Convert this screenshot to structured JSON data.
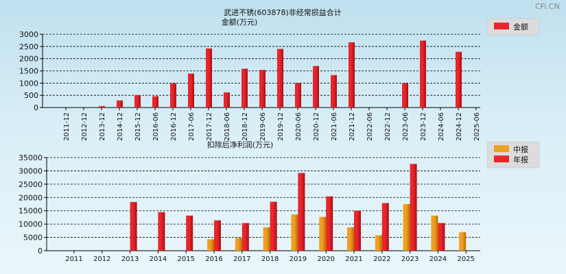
{
  "watermark": "CFi.CN",
  "colors": {
    "red": "#e8262b",
    "red_dark": "#a70f14",
    "orange": "#f0a020",
    "orange_dark": "#b86f00"
  },
  "chart_data": [
    {
      "type": "bar",
      "title": "武进不锈(603878)非经常损益合计",
      "ylabel": "金额(万元)",
      "ylim": [
        0,
        3000
      ],
      "yticks": [
        0,
        500,
        1000,
        1500,
        2000,
        2500,
        3000
      ],
      "categories": [
        "2011-12",
        "2012-12",
        "2013-12",
        "2014-12",
        "2015-12",
        "2016-06",
        "2016-12",
        "2017-06",
        "2017-12",
        "2018-06",
        "2018-12",
        "2019-06",
        "2019-12",
        "2020-06",
        "2020-12",
        "2021-06",
        "2021-12",
        "2022-06",
        "2022-12",
        "2023-06",
        "2023-12",
        "2024-06",
        "2024-12",
        "2025-06"
      ],
      "series": [
        {
          "name": "金额",
          "values": [
            0,
            0,
            60,
            290,
            510,
            460,
            990,
            1390,
            2420,
            620,
            1590,
            1540,
            2400,
            1000,
            1700,
            1330,
            2670,
            0,
            0,
            1000,
            2740,
            0,
            2280,
            0
          ]
        }
      ],
      "legend": "top-right",
      "grid": true
    },
    {
      "type": "bar",
      "title": "扣除后净利润(万元)",
      "ylim": [
        0,
        35000
      ],
      "yticks": [
        0,
        5000,
        10000,
        15000,
        20000,
        25000,
        30000,
        35000
      ],
      "categories": [
        "2011",
        "2012",
        "2013",
        "2014",
        "2015",
        "2016",
        "2017",
        "2018",
        "2019",
        "2020",
        "2021",
        "2022",
        "2023",
        "2024",
        "2025"
      ],
      "series": [
        {
          "name": "中报",
          "values": [
            0,
            0,
            0,
            0,
            0,
            4300,
            4800,
            8800,
            13600,
            12700,
            8800,
            5800,
            17500,
            13200,
            7000
          ]
        },
        {
          "name": "年报",
          "values": [
            0,
            0,
            18300,
            14500,
            13200,
            11400,
            10400,
            18400,
            29200,
            20400,
            15000,
            17900,
            32600,
            10400,
            0
          ]
        }
      ],
      "legend": "top-right",
      "grid": true
    }
  ]
}
